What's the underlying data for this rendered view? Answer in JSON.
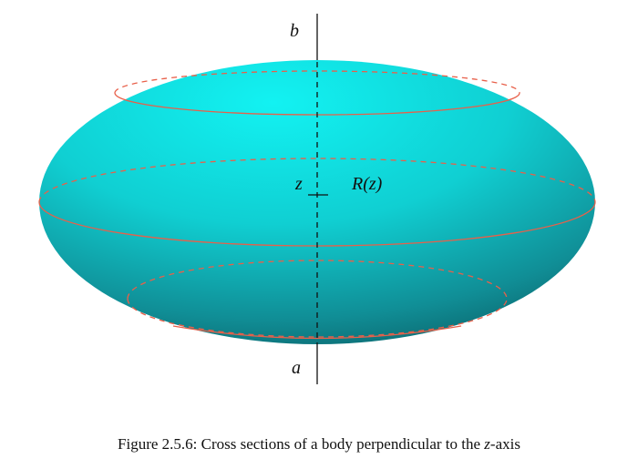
{
  "labels": {
    "top": "b",
    "bottom": "a",
    "level": "z",
    "radius": "R(z)"
  },
  "caption": {
    "prefix": "Figure 2.5.6: Cross sections of a body perpendicular to the ",
    "variable": "z",
    "suffix": "-axis"
  }
}
